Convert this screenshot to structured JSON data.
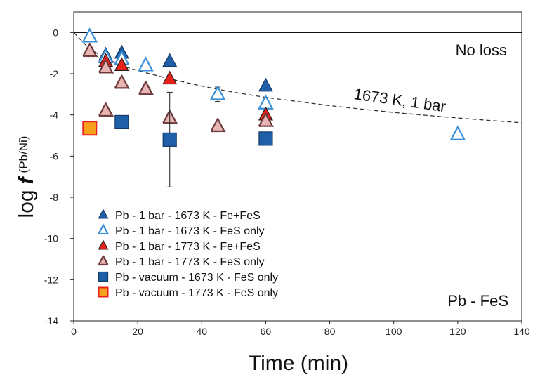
{
  "chart_data": {
    "type": "scatter",
    "xlabel": "Time (min)",
    "ylabel_main": "log",
    "ylabel_italic": "f",
    "ylabel_sub": "(Pb/Ni)",
    "xlim": [
      0,
      140
    ],
    "ylim": [
      -14,
      1
    ],
    "xticks": [
      0,
      20,
      40,
      60,
      80,
      100,
      120,
      140
    ],
    "yticks": [
      0,
      -2,
      -4,
      -6,
      -8,
      -10,
      -12,
      -14
    ],
    "grid": false,
    "legend_position": "bottom-left",
    "colors": {
      "dark_blue": "#1f5fa8",
      "light_blue": "#3a8fd8",
      "red": "#e8221a",
      "dotted_fill": "#e8b4b4",
      "dotted_edge": "#6b3a3a",
      "orange_fill": "#f6a21e",
      "orange_edge": "#e8221a"
    },
    "annotations": {
      "no_loss": "No loss",
      "curve_label": "1673 K, 1 bar",
      "system_label": "Pb - FeS"
    },
    "reference_lines": [
      {
        "name": "No loss",
        "style": "solid",
        "y": 0
      }
    ],
    "curve": {
      "name": "1673 K, 1 bar",
      "style": "dashed",
      "x": [
        0,
        5,
        10,
        15,
        20,
        25,
        30,
        40,
        50,
        60,
        70,
        80,
        90,
        100,
        110,
        120,
        130,
        140
      ],
      "y": [
        0,
        -0.8,
        -1.25,
        -1.6,
        -1.85,
        -2.05,
        -2.25,
        -2.6,
        -2.9,
        -3.15,
        -3.35,
        -3.55,
        -3.72,
        -3.88,
        -4.02,
        -4.15,
        -4.27,
        -4.38
      ]
    },
    "series": [
      {
        "name": "Pb - 1 bar - 1673 K - Fe+FeS",
        "marker": "triangle-filled",
        "x": [
          10,
          15,
          30,
          60
        ],
        "y": [
          -1.1,
          -1.0,
          -1.4,
          -2.6
        ]
      },
      {
        "name": "Pb - 1 bar - 1673 K - FeS only",
        "marker": "triangle-open",
        "x": [
          5,
          10,
          15,
          22.5,
          45,
          60,
          120
        ],
        "y": [
          -0.2,
          -1.2,
          -1.3,
          -1.6,
          -3.0,
          -3.45,
          -4.95
        ],
        "yerr": [
          0,
          0,
          0,
          0,
          0.35,
          0.3,
          0
        ]
      },
      {
        "name": "Pb - 1 bar - 1773 K - Fe+FeS",
        "marker": "triangle-red",
        "x": [
          10,
          15,
          30,
          60
        ],
        "y": [
          -1.4,
          -1.6,
          -2.25,
          -4.0
        ]
      },
      {
        "name": "Pb - 1 bar - 1773 K - FeS only",
        "marker": "triangle-dotted",
        "x": [
          5,
          10,
          10,
          15,
          22.5,
          30,
          45,
          60
        ],
        "y": [
          -0.9,
          -1.7,
          -3.8,
          -2.45,
          -2.75,
          -4.15,
          -4.55,
          -4.3
        ]
      },
      {
        "name": "Pb - vacuum - 1673 K - FeS only",
        "marker": "square-blue",
        "x": [
          15,
          30,
          60
        ],
        "y": [
          -4.35,
          -5.2,
          -5.15
        ],
        "yerr": [
          0,
          2.3,
          0
        ]
      },
      {
        "name": "Pb - vacuum - 1773 K - FeS only",
        "marker": "square-orange",
        "x": [
          5
        ],
        "y": [
          -4.65
        ]
      }
    ]
  }
}
